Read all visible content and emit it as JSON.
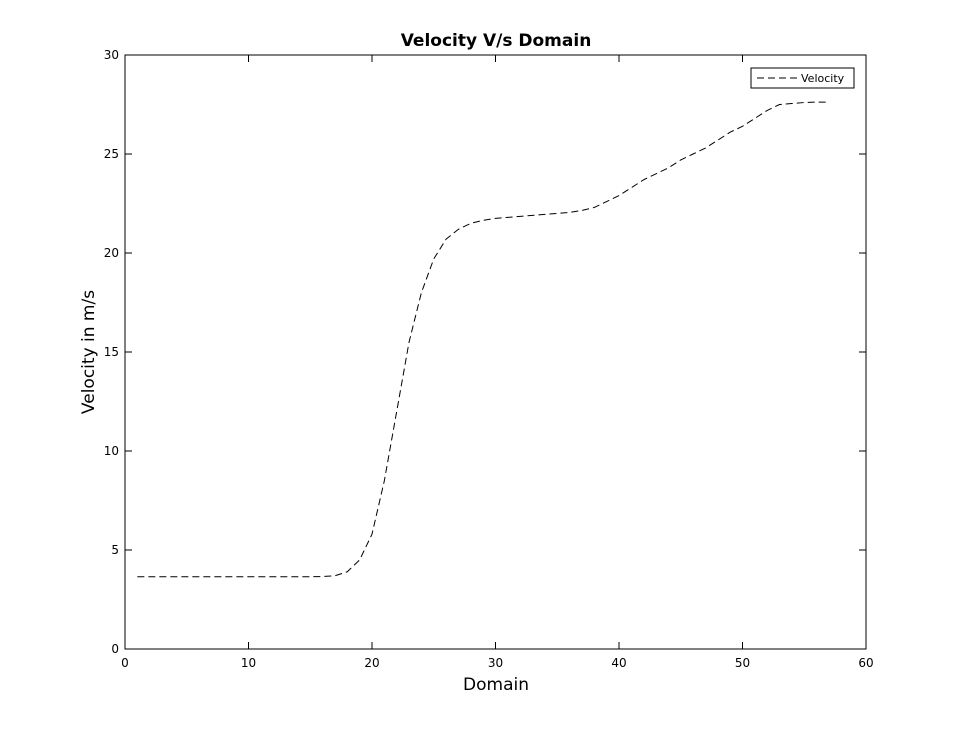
{
  "chart_data": {
    "type": "line",
    "title": "Velocity V/s Domain",
    "xlabel": "Domain",
    "ylabel": "Velocity in m/s",
    "xlim": [
      0,
      60
    ],
    "ylim": [
      0,
      30
    ],
    "xticks": [
      0,
      10,
      20,
      30,
      40,
      50,
      60
    ],
    "yticks": [
      0,
      5,
      10,
      15,
      20,
      25,
      30
    ],
    "grid": false,
    "legend_position": "top-right",
    "series": [
      {
        "name": "Velocity",
        "color": "#000000",
        "line_style": "dashed",
        "x": [
          1,
          2,
          3,
          4,
          5,
          6,
          7,
          8,
          9,
          10,
          11,
          12,
          13,
          14,
          15,
          16,
          17,
          18,
          19,
          20,
          21,
          22,
          23,
          24,
          25,
          26,
          27,
          28,
          29,
          30,
          31,
          32,
          33,
          34,
          35,
          36,
          37,
          38,
          39,
          40,
          41,
          42,
          43,
          44,
          45,
          46,
          47,
          48,
          49,
          50,
          51,
          52,
          53,
          54,
          55,
          56,
          57
        ],
        "y": [
          3.65,
          3.65,
          3.65,
          3.65,
          3.65,
          3.65,
          3.65,
          3.65,
          3.65,
          3.65,
          3.65,
          3.65,
          3.65,
          3.65,
          3.65,
          3.66,
          3.7,
          3.9,
          4.5,
          5.8,
          8.5,
          12.0,
          15.5,
          18.0,
          19.7,
          20.7,
          21.2,
          21.5,
          21.65,
          21.75,
          21.8,
          21.85,
          21.9,
          21.95,
          22.0,
          22.05,
          22.15,
          22.3,
          22.6,
          22.9,
          23.3,
          23.7,
          24.0,
          24.3,
          24.7,
          25.0,
          25.3,
          25.7,
          26.1,
          26.4,
          26.8,
          27.2,
          27.5,
          27.55,
          27.6,
          27.62,
          27.62
        ]
      }
    ]
  }
}
